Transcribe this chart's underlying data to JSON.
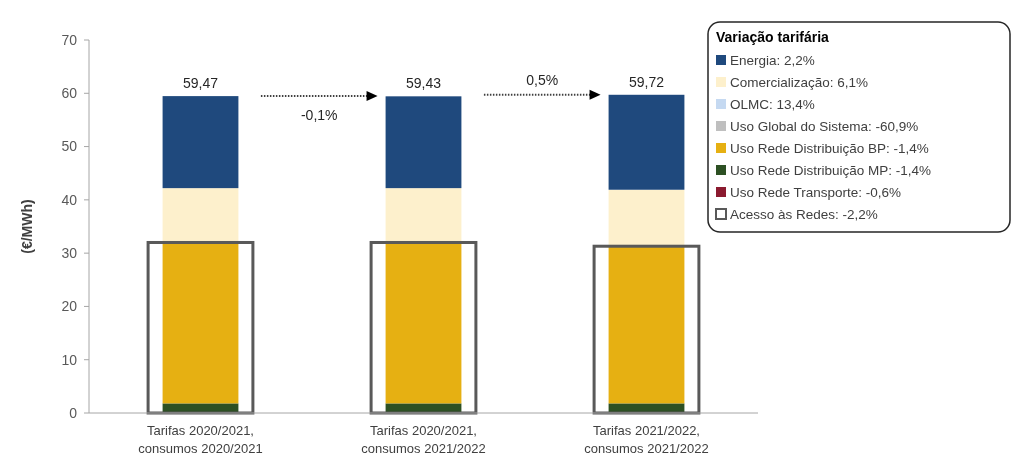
{
  "chart_data": {
    "type": "bar",
    "categories": [
      "Tarifas 2020/2021,\nconsumos 2020/2021",
      "Tarifas 2020/2021,\nconsumos 2021/2022",
      "Tarifas 2021/2022,\nconsumos 2021/2022"
    ],
    "ylabel": "(€/MWh)",
    "ylim": [
      0,
      70
    ],
    "yticks": [
      0,
      10,
      20,
      30,
      40,
      50,
      60,
      70
    ],
    "legend": "top right",
    "legend_title": "Variação tarifária",
    "series": [
      {
        "name": "Uso Rede Transporte: -0,6%",
        "color": "#8b1a2f",
        "values": [
          null,
          null,
          null
        ]
      },
      {
        "name": "Uso Rede Distribuição MP: -1,4%",
        "color": "#2d5023",
        "base": [
          0,
          0,
          0
        ],
        "values": [
          1.8,
          1.8,
          1.8
        ]
      },
      {
        "name": "Uso Rede Distribuição BP: -1,4%",
        "color": "#e6b012",
        "base": [
          1.8,
          1.8,
          1.8
        ],
        "values": [
          30.2,
          30.2,
          29.5
        ]
      },
      {
        "name": "Uso Global do Sistema: -60,9%",
        "color": "#bfbfbf",
        "values": [
          null,
          null,
          null
        ]
      },
      {
        "name": "OLMC: 13,4%",
        "color": "#c5d9f1",
        "values": [
          null,
          null,
          null
        ]
      },
      {
        "name": "Comercialização: 6,1%",
        "color": "#fdf0cc",
        "base": [
          32.0,
          32.0,
          31.3
        ],
        "values": [
          10.2,
          10.2,
          10.6
        ]
      },
      {
        "name": "Energia: 2,2%",
        "color": "#1f497d",
        "base": [
          42.2,
          42.2,
          41.9
        ],
        "values": [
          17.27,
          17.23,
          17.82
        ],
        "value_labels": [
          "59,47",
          "59,43",
          "59,72"
        ]
      },
      {
        "name": "Acesso às Redes: -2,2%",
        "color": "#595959",
        "values": [
          32.0,
          32.0,
          31.3
        ]
      }
    ],
    "annotations": [
      "-0,1%",
      "0,5%"
    ]
  }
}
